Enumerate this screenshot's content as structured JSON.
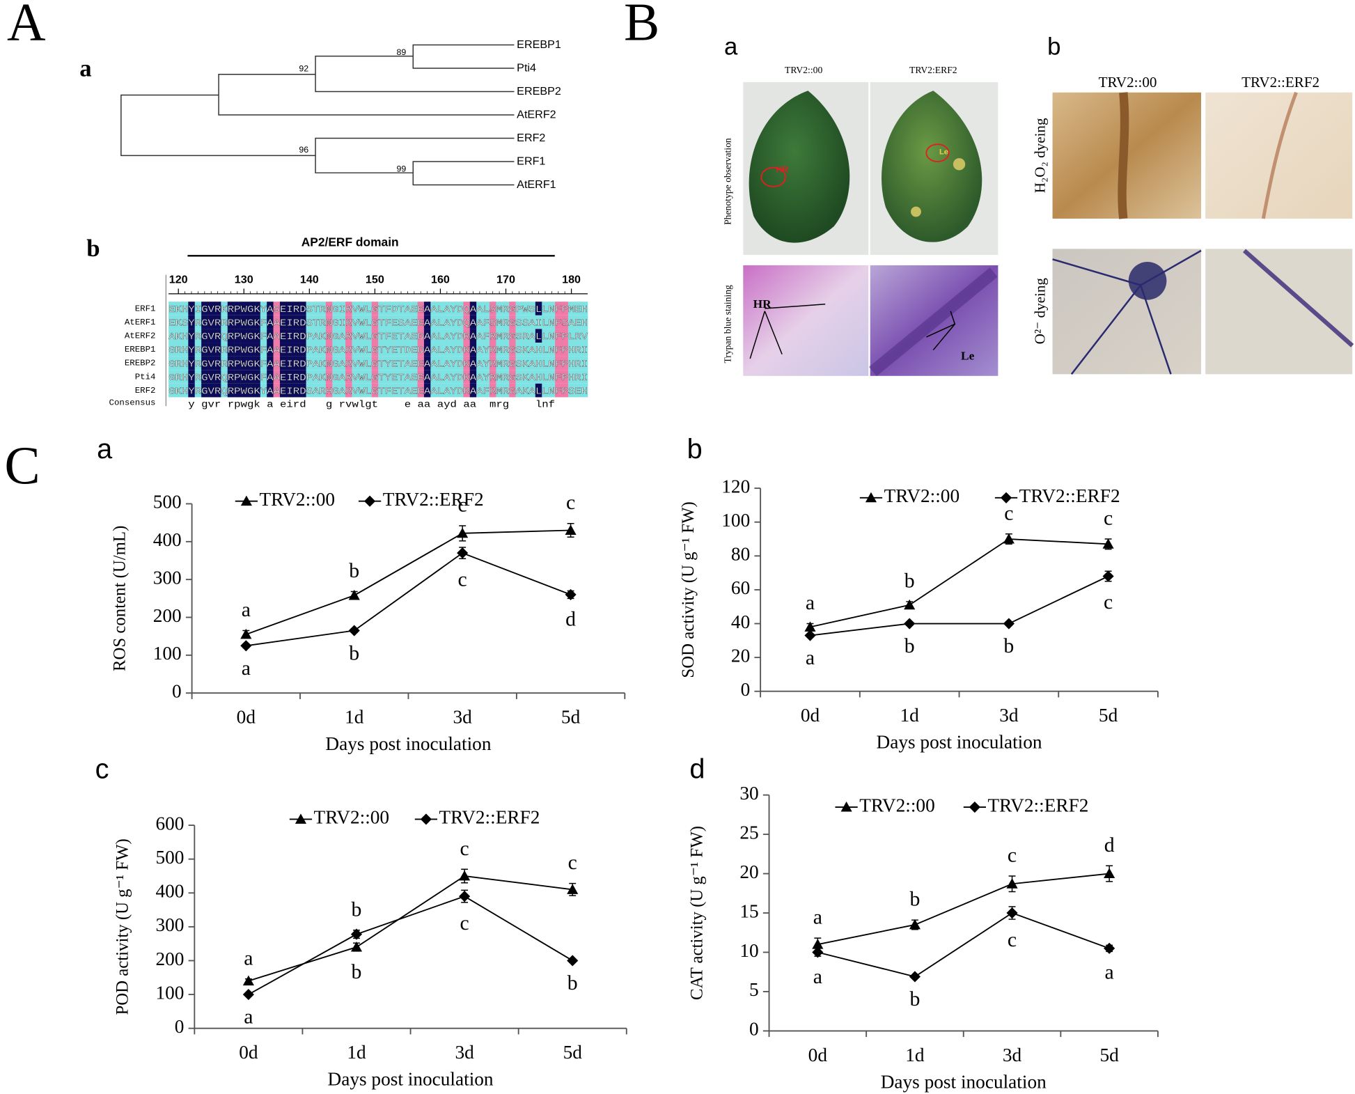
{
  "panel_labels": [
    "A",
    "a",
    "b",
    "B",
    "a",
    "b",
    "C",
    "a",
    "b",
    "c",
    "d"
  ],
  "tree": {
    "leaves": [
      "EREBP1",
      "Pti4",
      "EREBP2",
      "AtERF2",
      "ERF2",
      "ERF1",
      "AtERF1"
    ],
    "bootstrap": [
      89,
      92,
      96,
      99
    ]
  },
  "alignment": {
    "title": "AP2/ERF domain",
    "ruler": [
      120,
      130,
      140,
      150,
      160,
      170,
      180
    ],
    "rows": [
      {
        "name": "ERF1",
        "sequence": "EKHYIGVRKRPWGKYASEIRDSTRNGIRVWLGTFDTAEEAALAYDQAALSMRGPWSLLNFPMEH"
      },
      {
        "name": "AtERF1",
        "sequence": "EKSYRGVRRRPWGKFAAEIRDSTRNGIRVWLGTFESAEEAALAYDQAAFSMRGSSAILNFSAEH"
      },
      {
        "name": "AtERF2",
        "sequence": "AKHYRGVRQRPWGKFAAEIRDPAKNGARVWLGTFETAEDAALAYDRAAFRMRGSRALLNFPLRV"
      },
      {
        "name": "EREBP1",
        "sequence": "GRHYRGVRRRPWGKFAAEIRDPAKNGARVWLGTYETDEDAALAYDKAAYRMRGSKAHLNFPHRI"
      },
      {
        "name": "EREBP2",
        "sequence": "GRHYRGVRRRPWGKFAAEIRDPAKNGARVWLGTYETAEEAALAYDKAAYRMRGSKAHLNFPHRI"
      },
      {
        "name": "Pti4",
        "sequence": "GRHYRGVRQRPWGKFAAEIRDPAKNGARVWLGTYETAEEAALAYDKAAYRMRGSKAHLNFPHRI"
      },
      {
        "name": "ERF2",
        "sequence": "GKHYRGVRQRPWGKYAAEIRDSARHGARVWLGTFETAEEAALAYDRAAFRMRGAKALLNFPSEH"
      }
    ],
    "consensus_name": "Consensus",
    "consensus": "   y gvr rpwgk a eird   g rvwlgt    e aa ayd aa  mrg    lnf"
  },
  "photos": {
    "a": {
      "columns": [
        "TRV2::00",
        "TRV2:ERF2"
      ],
      "rows": [
        "Phenotype observation",
        "Trypan blue staining"
      ],
      "marks": [
        "HR",
        "Le",
        "HR",
        "Le"
      ]
    },
    "b": {
      "columns": [
        "TRV2::00",
        "TRV2::ERF2"
      ],
      "rows": [
        "H₂O₂ dyeing",
        "O²⁻ dyeing"
      ]
    }
  },
  "chart_data": [
    {
      "type": "line",
      "y_label": "ROS content (U/mL)",
      "x_label": "Days post inoculation",
      "categories": [
        "0d",
        "1d",
        "3d",
        "5d"
      ],
      "ylim": [
        0,
        500
      ],
      "yticks": [
        0,
        100,
        200,
        300,
        400,
        500
      ],
      "series": [
        {
          "name": "TRV2::00",
          "marker": "triangle",
          "color": "#000000",
          "values": [
            155,
            258,
            422,
            430
          ],
          "errors": [
            10,
            10,
            20,
            18
          ],
          "letters": [
            "a",
            "b",
            "c",
            "c"
          ]
        },
        {
          "name": "TRV2::ERF2",
          "marker": "diamond",
          "color": "#000000",
          "values": [
            125,
            165,
            370,
            260
          ],
          "errors": [
            5,
            5,
            15,
            10
          ],
          "letters": [
            "a",
            "b",
            "c",
            "d"
          ]
        }
      ]
    },
    {
      "type": "line",
      "y_label": "SOD activity  (U g⁻¹ FW)",
      "x_label": "Days post inoculation",
      "categories": [
        "0d",
        "1d",
        "3d",
        "5d"
      ],
      "ylim": [
        0,
        120
      ],
      "yticks": [
        0,
        20,
        40,
        60,
        80,
        100,
        120
      ],
      "series": [
        {
          "name": "TRV2::00",
          "marker": "triangle",
          "color": "#000000",
          "values": [
            38,
            51,
            90,
            87
          ],
          "errors": [
            2,
            2,
            3,
            3
          ],
          "letters": [
            "a",
            "b",
            "c",
            "c"
          ]
        },
        {
          "name": "TRV2::ERF2",
          "marker": "diamond",
          "color": "#000000",
          "values": [
            33,
            40,
            40,
            68
          ],
          "errors": [
            1,
            1,
            1,
            3
          ],
          "letters": [
            "a",
            "b",
            "b",
            "c"
          ]
        }
      ]
    },
    {
      "type": "line",
      "y_label": "POD activity (U g⁻¹ FW)",
      "x_label": "Days post inoculation",
      "categories": [
        "0d",
        "1d",
        "3d",
        "5d"
      ],
      "ylim": [
        0,
        600
      ],
      "yticks": [
        0,
        100,
        200,
        300,
        400,
        500,
        600
      ],
      "series": [
        {
          "name": "TRV2::00",
          "marker": "triangle",
          "color": "#000000",
          "values": [
            140,
            240,
            450,
            410
          ],
          "errors": [
            6,
            12,
            20,
            18
          ],
          "letters": [
            "a",
            "b",
            "c",
            "c"
          ]
        },
        {
          "name": "TRV2::ERF2",
          "marker": "diamond",
          "color": "#000000",
          "values": [
            100,
            278,
            390,
            200
          ],
          "errors": [
            5,
            12,
            18,
            5
          ],
          "letters": [
            "a",
            "b",
            "c",
            "b"
          ]
        }
      ]
    },
    {
      "type": "line",
      "y_label": "CAT activity (U g⁻¹ FW)",
      "x_label": "Days post inoculation",
      "categories": [
        "0d",
        "1d",
        "3d",
        "5d"
      ],
      "ylim": [
        0,
        30
      ],
      "yticks": [
        0,
        5,
        10,
        15,
        20,
        25,
        30
      ],
      "series": [
        {
          "name": "TRV2::00",
          "marker": "triangle",
          "color": "#000000",
          "values": [
            11,
            13.5,
            18.7,
            20
          ],
          "errors": [
            0.8,
            0.6,
            1,
            1
          ],
          "letters": [
            "a",
            "b",
            "c",
            "d"
          ]
        },
        {
          "name": "TRV2::ERF2",
          "marker": "diamond",
          "color": "#000000",
          "values": [
            10,
            6.9,
            15,
            10.5
          ],
          "errors": [
            0.5,
            0.2,
            0.8,
            0.4
          ],
          "letters": [
            "a",
            "b",
            "c",
            "a"
          ]
        }
      ]
    }
  ]
}
